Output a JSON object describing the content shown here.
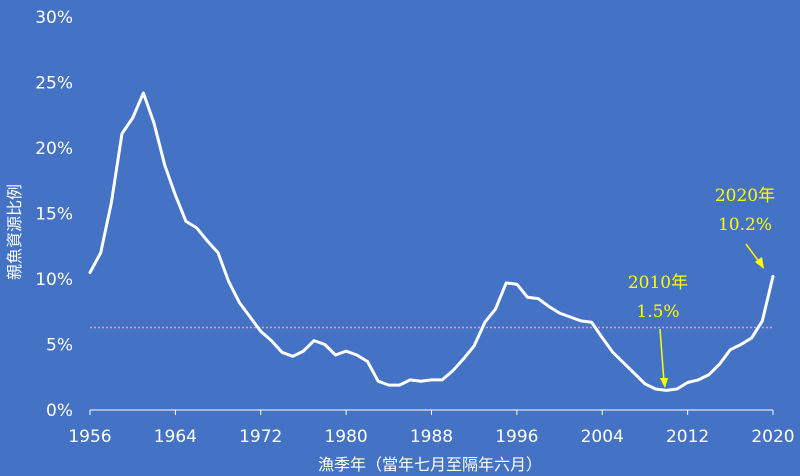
{
  "chart_data": {
    "type": "line",
    "xlabel": "漁季年（當年七月至隔年六月）",
    "ylabel": "親魚資源比例",
    "xlim": [
      1956,
      2020
    ],
    "ylim": [
      0,
      30
    ],
    "x_ticks": [
      "1956",
      "1964",
      "1972",
      "1980",
      "1988",
      "1996",
      "2004",
      "2012",
      "2020"
    ],
    "y_ticks": [
      "0%",
      "5%",
      "10%",
      "15%",
      "20%",
      "25%",
      "30%"
    ],
    "grid": false,
    "colors": {
      "background": "#4472C4",
      "line": "#FFFFFF",
      "reference": "#E8A0A0",
      "annotation": "#FFFF00"
    },
    "reference_line": {
      "y": 6.3,
      "style": "dotted"
    },
    "series": [
      {
        "x": [
          1956,
          1957,
          1958,
          1959,
          1960,
          1961,
          1962,
          1963,
          1964,
          1965,
          1966,
          1967,
          1968,
          1969,
          1970,
          1971,
          1972,
          1973,
          1974,
          1975,
          1976,
          1977,
          1978,
          1979,
          1980,
          1981,
          1982,
          1983,
          1984,
          1985,
          1986,
          1987,
          1988,
          1989,
          1990,
          1991,
          1992,
          1993,
          1994,
          1995,
          1996,
          1997,
          1998,
          1999,
          2000,
          2001,
          2002,
          2003,
          2004,
          2005,
          2006,
          2007,
          2008,
          2009,
          2010,
          2011,
          2012,
          2013,
          2014,
          2015,
          2016,
          2017,
          2018,
          2019,
          2020
        ],
        "values": [
          10.5,
          12.0,
          15.8,
          21.1,
          22.3,
          24.2,
          21.9,
          18.7,
          16.4,
          14.4,
          13.9,
          12.9,
          12.0,
          9.8,
          8.2,
          7.1,
          6.0,
          5.3,
          4.4,
          4.1,
          4.5,
          5.3,
          5.0,
          4.2,
          4.5,
          4.2,
          3.7,
          2.2,
          1.9,
          1.9,
          2.3,
          2.2,
          2.3,
          2.3,
          3.0,
          3.9,
          4.9,
          6.7,
          7.7,
          9.7,
          9.6,
          8.6,
          8.5,
          7.9,
          7.4,
          7.1,
          6.8,
          6.7,
          5.5,
          4.4,
          3.6,
          2.8,
          2.0,
          1.6,
          1.5,
          1.6,
          2.1,
          2.3,
          2.7,
          3.5,
          4.6,
          5.0,
          5.5,
          6.8,
          10.2
        ]
      }
    ],
    "annotations": [
      {
        "year_label": "2010年",
        "value_label": "1.5%",
        "x": 2010,
        "y": 1.5
      },
      {
        "year_label": "2020年",
        "value_label": "10.2%",
        "x": 2020,
        "y": 10.2
      }
    ]
  }
}
